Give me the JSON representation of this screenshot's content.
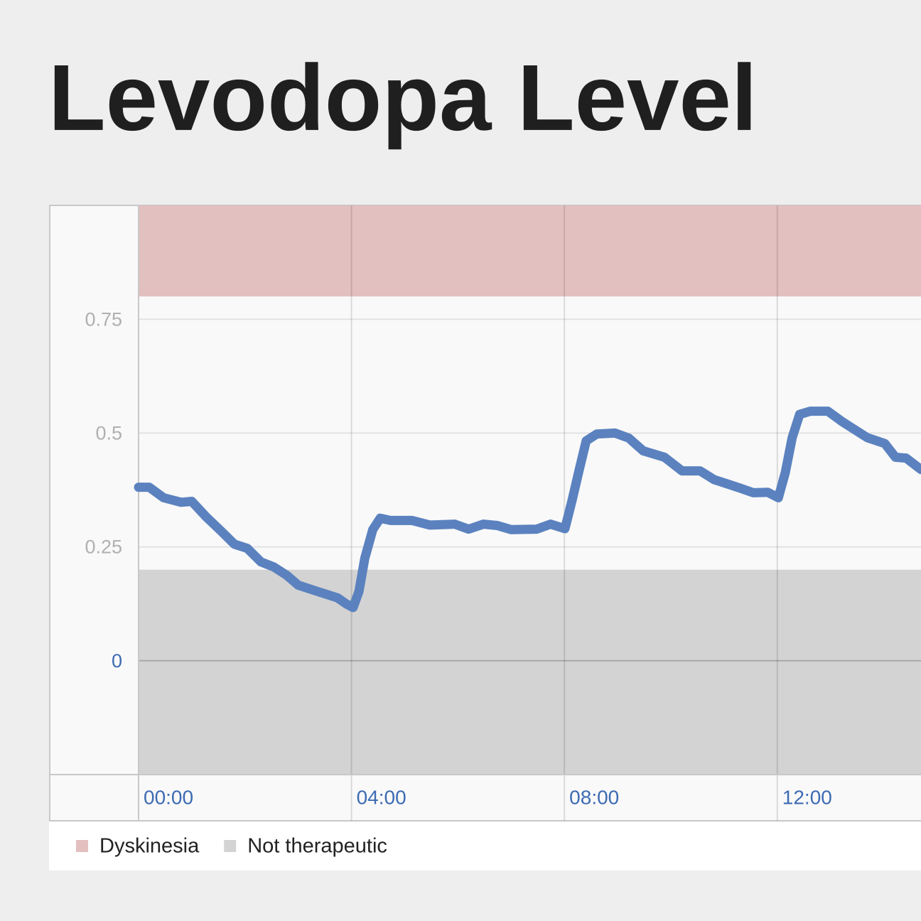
{
  "chart_data": {
    "type": "line",
    "title": "Levodopa Level",
    "x": [
      0,
      0.2,
      0.47,
      0.8,
      1.0,
      1.27,
      1.54,
      1.8,
      2.04,
      2.3,
      2.54,
      2.78,
      3.0,
      3.34,
      3.74,
      3.9,
      4.03,
      4.14,
      4.25,
      4.4,
      4.54,
      4.74,
      5.14,
      5.47,
      5.94,
      6.2,
      6.48,
      6.74,
      7.0,
      7.48,
      7.74,
      8.01,
      8.14,
      8.28,
      8.41,
      8.61,
      8.95,
      9.21,
      9.48,
      9.88,
      10.21,
      10.55,
      10.81,
      11.28,
      11.55,
      11.82,
      12.02,
      12.15,
      12.28,
      12.42,
      12.62,
      12.95,
      13.22,
      13.69,
      14.02,
      14.22,
      14.42,
      14.7
    ],
    "values": [
      0.381,
      0.381,
      0.358,
      0.348,
      0.35,
      0.316,
      0.286,
      0.256,
      0.247,
      0.217,
      0.206,
      0.188,
      0.166,
      0.153,
      0.138,
      0.125,
      0.117,
      0.152,
      0.225,
      0.288,
      0.313,
      0.308,
      0.308,
      0.298,
      0.3,
      0.289,
      0.3,
      0.297,
      0.288,
      0.289,
      0.3,
      0.29,
      0.35,
      0.42,
      0.483,
      0.498,
      0.5,
      0.489,
      0.461,
      0.447,
      0.417,
      0.417,
      0.398,
      0.38,
      0.369,
      0.37,
      0.358,
      0.413,
      0.49,
      0.541,
      0.548,
      0.548,
      0.525,
      0.49,
      0.477,
      0.447,
      0.445,
      0.42
    ],
    "color": "#5b82bf",
    "bands": [
      {
        "name": "Dyskinesia",
        "color": "#e2c0bf",
        "from": 0.8,
        "to": 1.0
      },
      {
        "name": "Not therapeutic",
        "color": "#d3d3d3",
        "from": -0.25,
        "to": 0.2
      }
    ],
    "xlim": [
      0,
      14.7
    ],
    "xticks": [
      {
        "value": 0,
        "label": "00:00"
      },
      {
        "value": 4,
        "label": "04:00"
      },
      {
        "value": 8,
        "label": "08:00"
      },
      {
        "value": 12,
        "label": "12:00"
      }
    ],
    "ylim": [
      -0.25,
      1.0
    ],
    "yticks": [
      0,
      0.25,
      0.5,
      0.75
    ],
    "grid": true
  }
}
